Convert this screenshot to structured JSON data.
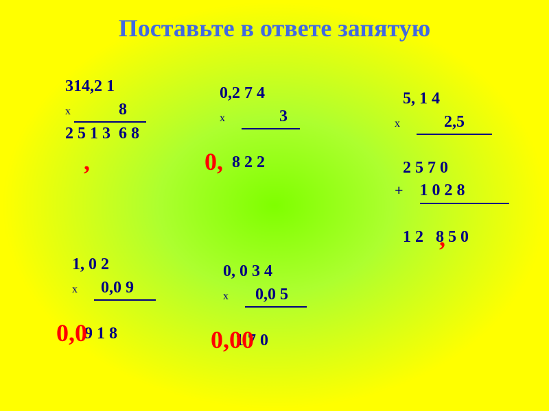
{
  "title": "Поставьте в ответе запятую",
  "colors": {
    "title": "#4169e1",
    "text": "#000080",
    "answer": "#ff0000",
    "bg_center": "#7fff00",
    "bg_outer": "#ffff00"
  },
  "problems": {
    "p1": {
      "multiplicand": "314,2 1",
      "multiplier": "8",
      "result": "2 5 1 3  6 8",
      "answer": ","
    },
    "p2": {
      "multiplicand": "0,2 7 4",
      "multiplier": "3",
      "result": "8 2 2",
      "answer": "0,"
    },
    "p3": {
      "multiplicand": "5, 1 4",
      "multiplier": "2,5",
      "partial1": "2 5 7 0",
      "partial2": "1 0 2 8",
      "result": "1 2   8 5 0",
      "answer": ","
    },
    "p4": {
      "multiplicand": "1, 0 2",
      "multiplier": "0,0 9",
      "result": "9 1 8",
      "answer": "0,0"
    },
    "p5": {
      "multiplicand": "0, 0 3 4",
      "multiplier": "0,0 5",
      "result": "1 7 0",
      "answer": "0,00"
    }
  },
  "symbols": {
    "mult": "x",
    "plus": "+"
  }
}
